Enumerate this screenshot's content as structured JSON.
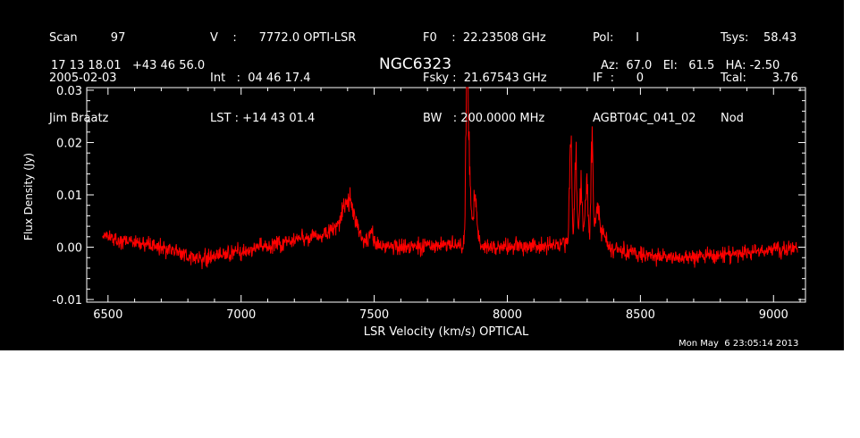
{
  "header": {
    "col1": [
      "Scan         97",
      "2005-02-03",
      "Jim Braatz"
    ],
    "col2": [
      "V    :      7772.0 OPTI-LSR",
      "Int   :  04 46 17.4",
      "LST : +14 43 01.4"
    ],
    "col3": [
      "F0    :  22.23508 GHz",
      "Fsky :  21.67543 GHz",
      "BW   : 200.0000 MHz"
    ],
    "col4": [
      "Pol:      I",
      "IF  :      0",
      "AGBT04C_041_02"
    ],
    "col5": [
      "Tsys:    58.43",
      "Tcal:       3.76",
      "Nod"
    ],
    "coords": "17 13 18.01   +43 46 56.0",
    "azel": "Az:  67.0   El:   61.5   HA: -2.50"
  },
  "footer": {
    "timestamp": "Mon May  6 23:05:14 2013"
  },
  "colors": {
    "background": "#000000",
    "foreground": "#ffffff",
    "trace": "#ff0000"
  },
  "chart_data": {
    "type": "line",
    "title": "NGC6323",
    "xlabel": "LSR Velocity (km/s) OPTICAL",
    "ylabel": "Flux Density (Jy)",
    "xlim": [
      6420,
      9120
    ],
    "ylim": [
      -0.0105,
      0.0305
    ],
    "xticks": [
      6500,
      7000,
      7500,
      8000,
      8500,
      9000
    ],
    "xtick_labels": [
      "6500",
      "7000",
      "7500",
      "8000",
      "8500",
      "9000"
    ],
    "yticks": [
      -0.01,
      0.0,
      0.01,
      0.02,
      0.03
    ],
    "ytick_labels": [
      "-0.01",
      "0.00",
      "0.01",
      "0.02",
      "0.03"
    ],
    "grid": false,
    "series": [
      {
        "x_start": 6480,
        "x_end": 9090,
        "noise_rms": 0.0015,
        "baseline": [
          [
            6480,
            0.002
          ],
          [
            6650,
            0.0005
          ],
          [
            6850,
            -0.002
          ],
          [
            7000,
            -0.001
          ],
          [
            7200,
            0.0015
          ],
          [
            7330,
            0.002
          ],
          [
            7500,
            0.0005
          ],
          [
            7650,
            0.0
          ],
          [
            7800,
            0.0005
          ],
          [
            8000,
            0.0
          ],
          [
            8200,
            0.0005
          ],
          [
            8400,
            -0.0005
          ],
          [
            8600,
            -0.002
          ],
          [
            8800,
            -0.0015
          ],
          [
            9090,
            0.0
          ]
        ],
        "features": [
          {
            "center": 7405,
            "amp": 0.006,
            "width": 22
          },
          {
            "center": 7380,
            "amp": 0.002,
            "width": 40
          },
          {
            "center": 7490,
            "amp": 0.002,
            "width": 8
          },
          {
            "center": 7848,
            "amp": 0.028,
            "width": 4
          },
          {
            "center": 7855,
            "amp": 0.016,
            "width": 6
          },
          {
            "center": 7878,
            "amp": 0.0085,
            "width": 8
          },
          {
            "center": 8238,
            "amp": 0.024,
            "width": 4
          },
          {
            "center": 8257,
            "amp": 0.018,
            "width": 4
          },
          {
            "center": 8276,
            "amp": 0.012,
            "width": 5
          },
          {
            "center": 8298,
            "amp": 0.012,
            "width": 6
          },
          {
            "center": 8318,
            "amp": 0.02,
            "width": 4
          },
          {
            "center": 8338,
            "amp": 0.008,
            "width": 8
          },
          {
            "center": 8360,
            "amp": 0.003,
            "width": 10
          }
        ]
      }
    ]
  }
}
